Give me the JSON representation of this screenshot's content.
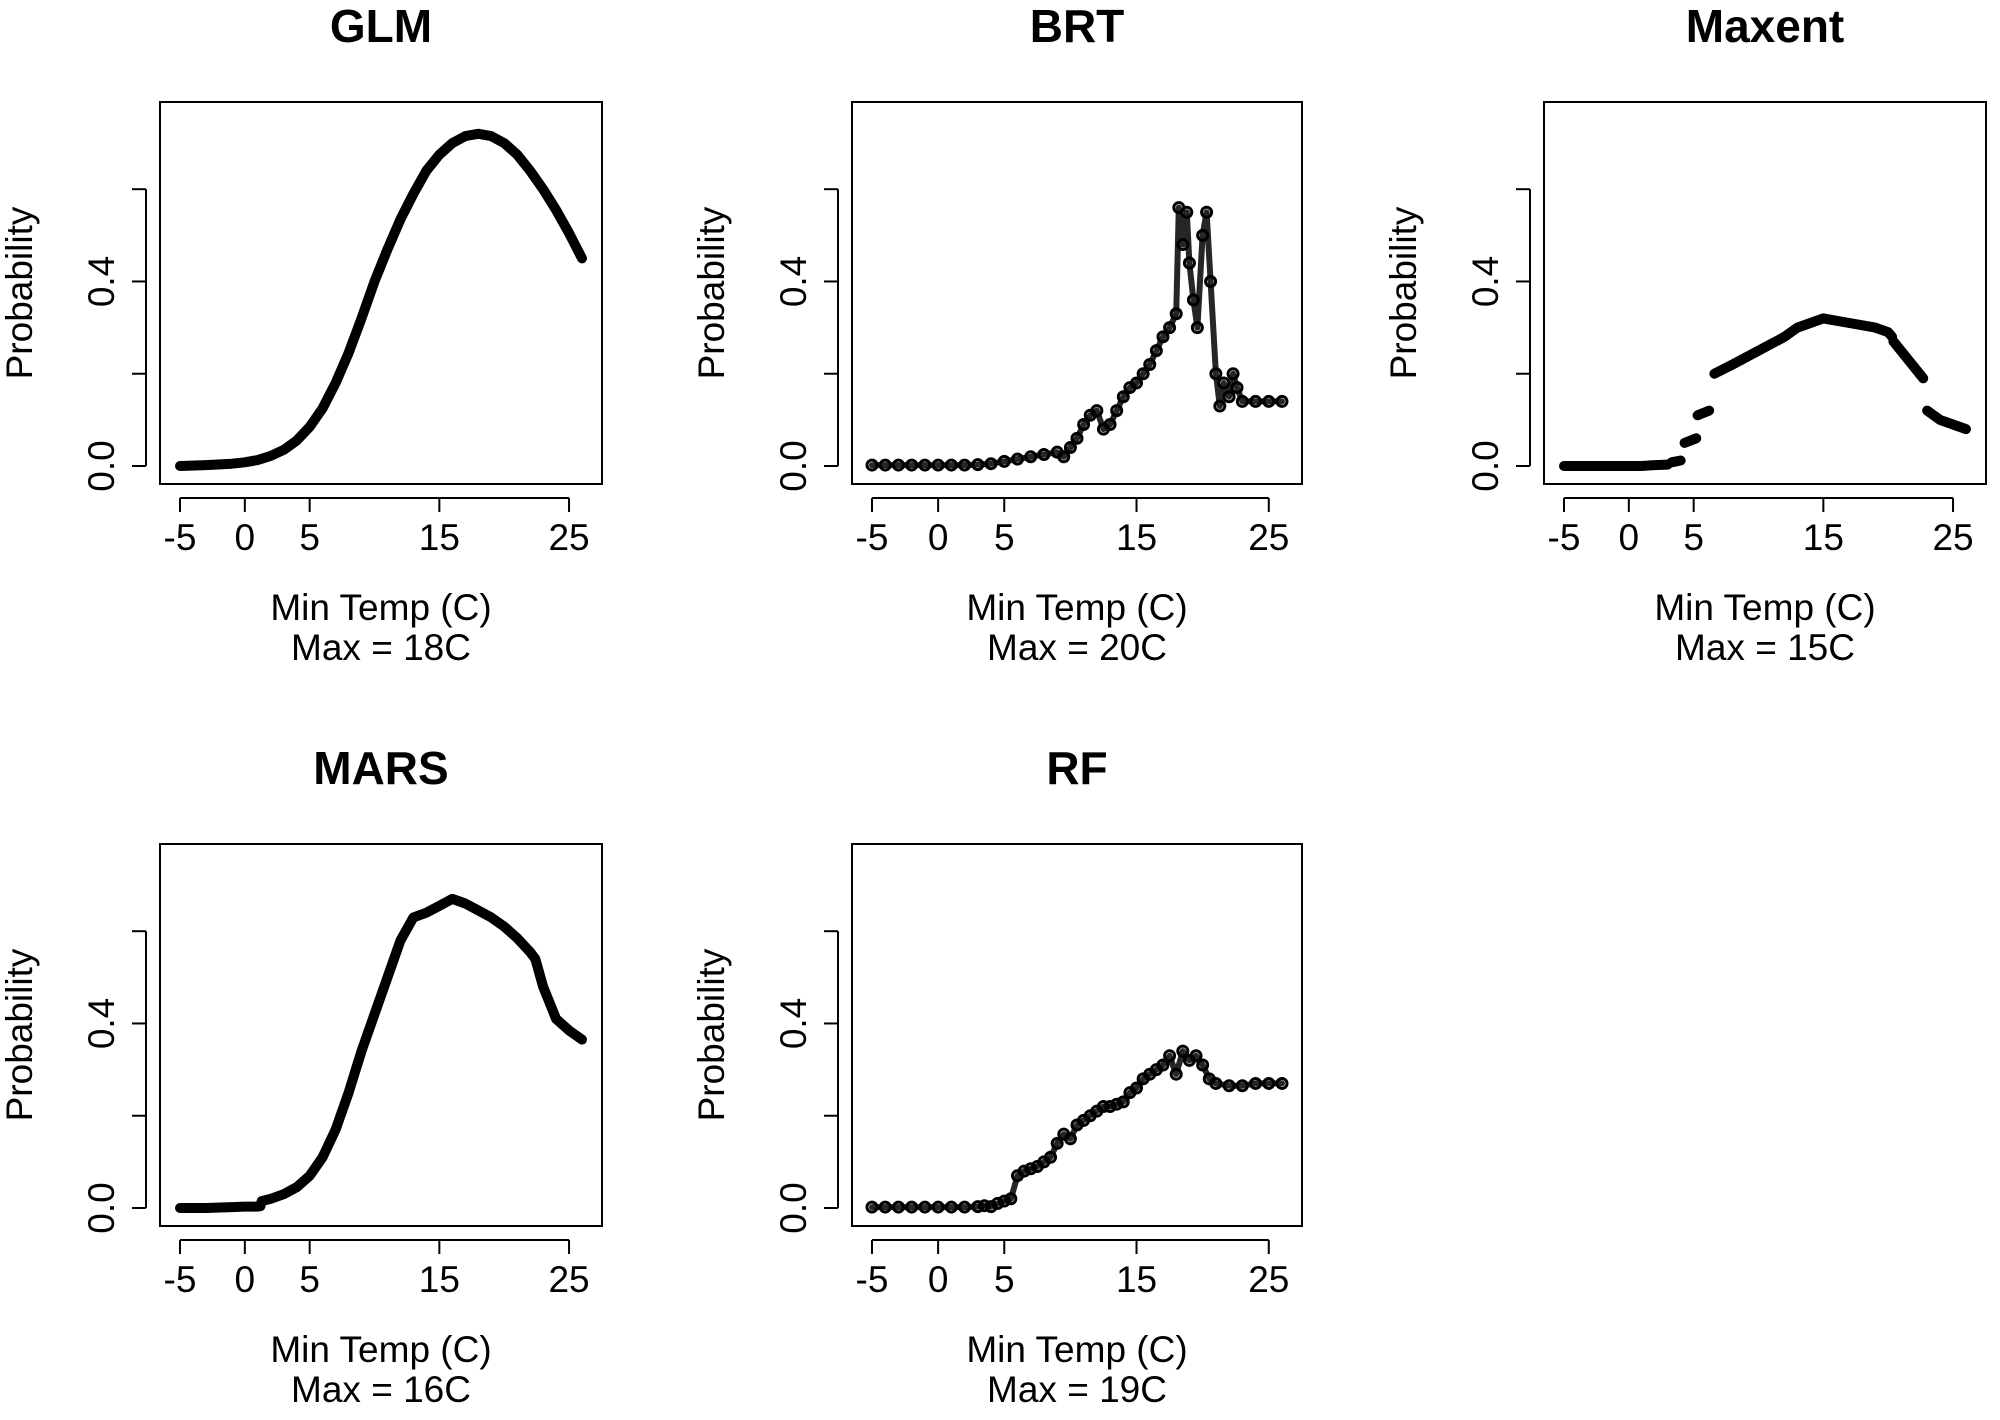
{
  "chart_data": [
    {
      "type": "line",
      "title": "GLM",
      "xlabel": "Min Temp (C)",
      "note": "Max = 18C",
      "ylabel": "Probability",
      "xlim": [
        -5,
        26
      ],
      "ylim": [
        0,
        0.75
      ],
      "xticks": [
        "-5",
        "0",
        "5",
        "15",
        "25"
      ],
      "xtick_values": [
        -5,
        0,
        5,
        15,
        25
      ],
      "yticks": [
        "0.0",
        "0.4"
      ],
      "ytick_values": [
        0,
        0.2,
        0.4,
        0.6
      ],
      "series": [
        {
          "style": "line",
          "x": [
            -5,
            -3,
            -1,
            0,
            1,
            2,
            3,
            4,
            5,
            6,
            7,
            8,
            9,
            10,
            11,
            12,
            13,
            14,
            15,
            16,
            17,
            18,
            19,
            20,
            21,
            22,
            23,
            24,
            25,
            26
          ],
          "y": [
            0.0,
            0.002,
            0.005,
            0.008,
            0.013,
            0.022,
            0.035,
            0.055,
            0.085,
            0.125,
            0.18,
            0.245,
            0.32,
            0.4,
            0.47,
            0.535,
            0.59,
            0.64,
            0.675,
            0.7,
            0.715,
            0.72,
            0.715,
            0.7,
            0.675,
            0.64,
            0.6,
            0.555,
            0.505,
            0.45
          ]
        }
      ]
    },
    {
      "type": "scatter",
      "title": "BRT",
      "xlabel": "Min Temp (C)",
      "note": "Max = 20C",
      "ylabel": "Probability",
      "xlim": [
        -5,
        26
      ],
      "ylim": [
        0,
        0.75
      ],
      "xticks": [
        "-5",
        "0",
        "5",
        "15",
        "25"
      ],
      "xtick_values": [
        -5,
        0,
        5,
        15,
        25
      ],
      "yticks": [
        "0.0",
        "0.4"
      ],
      "ytick_values": [
        0,
        0.2,
        0.4,
        0.6
      ],
      "series": [
        {
          "style": "points",
          "x": [
            -5,
            -4,
            -3,
            -2,
            -1,
            0,
            1,
            2,
            3,
            4,
            5,
            6,
            7,
            8,
            9,
            9.5,
            10,
            10.5,
            11,
            11.5,
            12,
            12.5,
            13,
            13.5,
            14,
            14.5,
            15,
            15.5,
            16,
            16.5,
            17,
            17.5,
            18,
            18.2,
            18.5,
            18.8,
            19,
            19.3,
            19.6,
            20,
            20.3,
            20.6,
            21,
            21.3,
            21.6,
            22,
            22.3,
            22.6,
            23,
            24,
            25,
            26
          ],
          "y": [
            0.002,
            0.002,
            0.002,
            0.002,
            0.002,
            0.002,
            0.002,
            0.002,
            0.003,
            0.005,
            0.01,
            0.015,
            0.02,
            0.025,
            0.03,
            0.02,
            0.04,
            0.06,
            0.09,
            0.11,
            0.12,
            0.08,
            0.09,
            0.12,
            0.15,
            0.17,
            0.18,
            0.2,
            0.22,
            0.25,
            0.28,
            0.3,
            0.33,
            0.56,
            0.48,
            0.55,
            0.44,
            0.36,
            0.3,
            0.5,
            0.55,
            0.4,
            0.2,
            0.13,
            0.18,
            0.15,
            0.2,
            0.17,
            0.14,
            0.14,
            0.14,
            0.14
          ]
        }
      ]
    },
    {
      "type": "line",
      "title": "Maxent",
      "xlabel": "Min Temp (C)",
      "note": "Max = 15C",
      "ylabel": "Probability",
      "xlim": [
        -5,
        26
      ],
      "ylim": [
        0,
        0.75
      ],
      "xticks": [
        "-5",
        "0",
        "5",
        "15",
        "25"
      ],
      "xtick_values": [
        -5,
        0,
        5,
        15,
        25
      ],
      "yticks": [
        "0.0",
        "0.4"
      ],
      "ytick_values": [
        0,
        0.2,
        0.4,
        0.6
      ],
      "series": [
        {
          "style": "line",
          "x": [
            -5,
            -3,
            -1,
            0,
            1,
            2,
            3
          ],
          "y": [
            0.0,
            0.0,
            0.0,
            0.0,
            0.0,
            0.002,
            0.003
          ]
        },
        {
          "style": "line",
          "x": [
            3.3,
            4.0
          ],
          "y": [
            0.008,
            0.012
          ]
        },
        {
          "style": "line",
          "x": [
            4.3,
            5.2
          ],
          "y": [
            0.05,
            0.06
          ]
        },
        {
          "style": "line",
          "x": [
            5.3,
            6.2
          ],
          "y": [
            0.11,
            0.12
          ]
        },
        {
          "style": "line",
          "x": [
            6.6,
            8,
            10,
            12,
            13,
            15,
            17,
            19,
            20,
            20.3
          ],
          "y": [
            0.2,
            0.22,
            0.25,
            0.28,
            0.3,
            0.32,
            0.31,
            0.3,
            0.29,
            0.28
          ]
        },
        {
          "style": "line",
          "x": [
            20.4,
            22.7
          ],
          "y": [
            0.27,
            0.19
          ]
        },
        {
          "style": "line",
          "x": [
            23.0,
            24,
            25,
            26
          ],
          "y": [
            0.12,
            0.1,
            0.09,
            0.08
          ]
        }
      ]
    },
    {
      "type": "line",
      "title": "MARS",
      "xlabel": "Min Temp (C)",
      "note": "Max = 16C",
      "ylabel": "Probability",
      "xlim": [
        -5,
        26
      ],
      "ylim": [
        0,
        0.75
      ],
      "xticks": [
        "-5",
        "0",
        "5",
        "15",
        "25"
      ],
      "xtick_values": [
        -5,
        0,
        5,
        15,
        25
      ],
      "yticks": [
        "0.0",
        "0.4"
      ],
      "ytick_values": [
        0,
        0.2,
        0.4,
        0.6
      ],
      "series": [
        {
          "style": "line",
          "x": [
            -5,
            -3,
            -1,
            0,
            1,
            1.2,
            1.3,
            2,
            3,
            4,
            5,
            6,
            7,
            8,
            9,
            10,
            11,
            12,
            13,
            14,
            15,
            16,
            17,
            18,
            19,
            20,
            21,
            22,
            22.4,
            23,
            24,
            25,
            26
          ],
          "y": [
            0.0,
            0.0,
            0.002,
            0.003,
            0.003,
            0.004,
            0.015,
            0.02,
            0.03,
            0.045,
            0.07,
            0.11,
            0.17,
            0.25,
            0.34,
            0.42,
            0.5,
            0.58,
            0.63,
            0.64,
            0.655,
            0.67,
            0.66,
            0.645,
            0.63,
            0.61,
            0.585,
            0.555,
            0.54,
            0.48,
            0.41,
            0.385,
            0.365
          ]
        }
      ]
    },
    {
      "type": "scatter",
      "title": "RF",
      "xlabel": "Min Temp (C)",
      "note": "Max = 19C",
      "ylabel": "Probability",
      "xlim": [
        -5,
        26
      ],
      "ylim": [
        0,
        0.75
      ],
      "xticks": [
        "-5",
        "0",
        "5",
        "15",
        "25"
      ],
      "xtick_values": [
        -5,
        0,
        5,
        15,
        25
      ],
      "yticks": [
        "0.0",
        "0.4"
      ],
      "ytick_values": [
        0,
        0.2,
        0.4,
        0.6
      ],
      "series": [
        {
          "style": "points",
          "x": [
            -5,
            -4,
            -3,
            -2,
            -1,
            0,
            1,
            2,
            3,
            3.5,
            4,
            4.5,
            5,
            5.5,
            6,
            6.5,
            7,
            7.5,
            8,
            8.5,
            9,
            9.5,
            10,
            10.5,
            11,
            11.5,
            12,
            12.5,
            13,
            13.5,
            14,
            14.5,
            15,
            15.5,
            16,
            16.5,
            17,
            17.5,
            18,
            18.5,
            19,
            19.5,
            20,
            20.5,
            21,
            22,
            23,
            24,
            25,
            26
          ],
          "y": [
            0.002,
            0.002,
            0.002,
            0.002,
            0.002,
            0.002,
            0.002,
            0.002,
            0.003,
            0.005,
            0.003,
            0.01,
            0.015,
            0.02,
            0.07,
            0.08,
            0.085,
            0.09,
            0.1,
            0.11,
            0.14,
            0.16,
            0.15,
            0.18,
            0.19,
            0.2,
            0.21,
            0.22,
            0.22,
            0.225,
            0.23,
            0.25,
            0.26,
            0.28,
            0.29,
            0.3,
            0.31,
            0.33,
            0.29,
            0.34,
            0.32,
            0.33,
            0.31,
            0.28,
            0.27,
            0.265,
            0.265,
            0.27,
            0.27,
            0.27
          ]
        }
      ]
    }
  ]
}
